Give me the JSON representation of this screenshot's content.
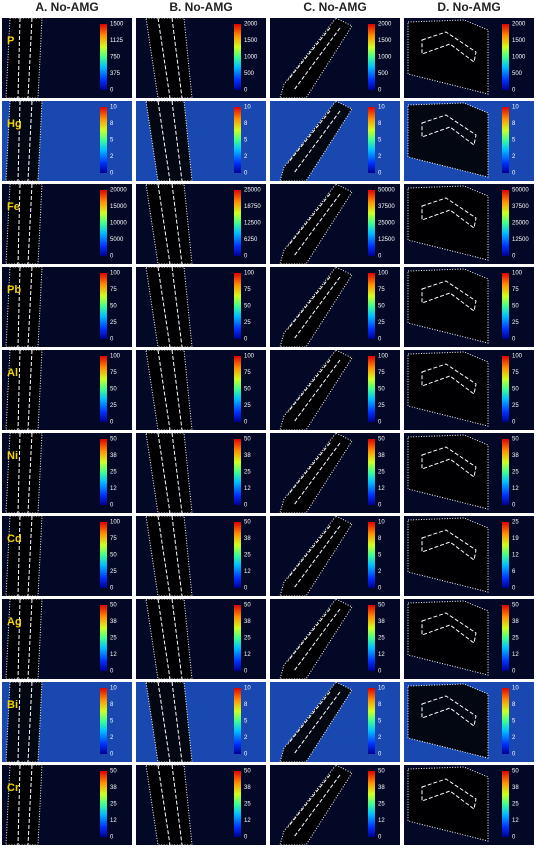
{
  "columns": [
    "A. No-AMG",
    "B. No-AMG",
    "C. No-AMG",
    "D. No-AMG"
  ],
  "rows": [
    {
      "element": "P",
      "scales": [
        [
          1500,
          1125,
          750,
          375,
          0
        ],
        [
          2000,
          1500,
          1000,
          500,
          0
        ],
        [
          2000,
          1500,
          1000,
          500,
          0
        ],
        [
          2000,
          1500,
          1000,
          500,
          0
        ]
      ]
    },
    {
      "element": "Hg",
      "scales": [
        [
          10,
          8,
          5,
          2,
          0
        ],
        [
          10,
          8,
          5,
          2,
          0
        ],
        [
          10,
          8,
          5,
          2,
          0
        ],
        [
          10,
          8,
          5,
          2,
          0
        ]
      ]
    },
    {
      "element": "Fe",
      "scales": [
        [
          20000,
          15000,
          10000,
          5000,
          0
        ],
        [
          25000,
          18750,
          12500,
          6250,
          0
        ],
        [
          50000,
          37500,
          25000,
          12500,
          0
        ],
        [
          50000,
          37500,
          25000,
          12500,
          0
        ]
      ]
    },
    {
      "element": "Pb",
      "scales": [
        [
          100,
          75,
          50,
          25,
          0
        ],
        [
          100,
          75,
          50,
          25,
          0
        ],
        [
          100,
          75,
          50,
          25,
          0
        ],
        [
          100,
          75,
          50,
          25,
          0
        ]
      ]
    },
    {
      "element": "Al",
      "scales": [
        [
          100,
          75,
          50,
          25,
          0
        ],
        [
          100,
          75,
          50,
          25,
          0
        ],
        [
          100,
          75,
          50,
          25,
          0
        ],
        [
          100,
          75,
          50,
          25,
          0
        ]
      ]
    },
    {
      "element": "Ni",
      "scales": [
        [
          50,
          38,
          25,
          12,
          0
        ],
        [
          50,
          38,
          25,
          12,
          0
        ],
        [
          50,
          38,
          25,
          12,
          0
        ],
        [
          50,
          38,
          25,
          12,
          0
        ]
      ]
    },
    {
      "element": "Cd",
      "scales": [
        [
          100,
          75,
          50,
          25,
          0
        ],
        [
          50,
          38,
          25,
          12,
          0
        ],
        [
          10,
          8,
          5,
          2,
          0
        ],
        [
          25,
          19,
          12,
          6,
          0
        ]
      ]
    },
    {
      "element": "Ag",
      "scales": [
        [
          50,
          38,
          25,
          12,
          0
        ],
        [
          50,
          38,
          25,
          12,
          0
        ],
        [
          50,
          38,
          25,
          12,
          0
        ],
        [
          50,
          38,
          25,
          12,
          0
        ]
      ]
    },
    {
      "element": "Bi",
      "scales": [
        [
          10,
          8,
          5,
          2,
          0
        ],
        [
          10,
          8,
          5,
          2,
          0
        ],
        [
          10,
          8,
          5,
          2,
          0
        ],
        [
          10,
          8,
          5,
          2,
          0
        ]
      ]
    },
    {
      "element": "Cr",
      "scales": [
        [
          50,
          38,
          25,
          12,
          0
        ],
        [
          50,
          38,
          25,
          12,
          0
        ],
        [
          50,
          38,
          25,
          12,
          0
        ],
        [
          50,
          38,
          25,
          12,
          0
        ]
      ]
    }
  ]
}
